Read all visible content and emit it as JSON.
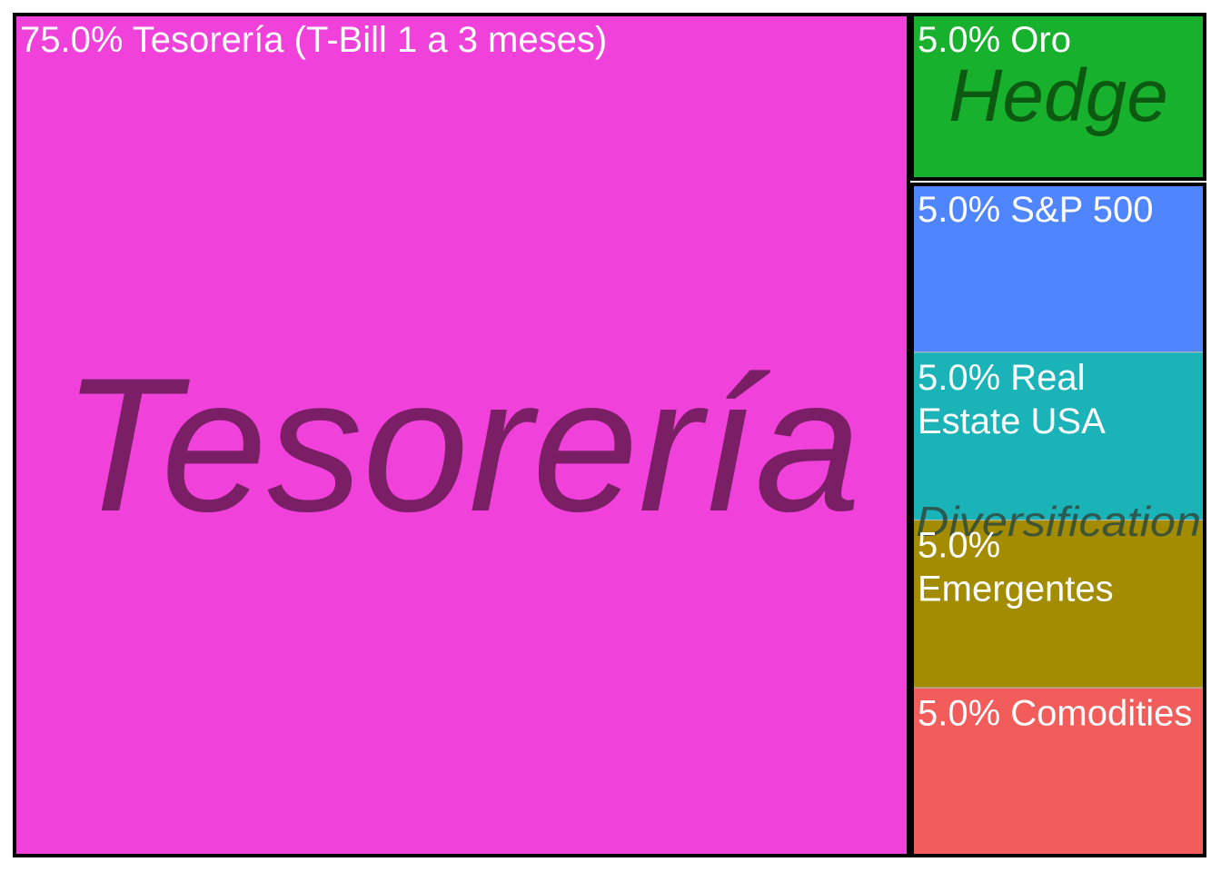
{
  "chart_data": {
    "type": "treemap",
    "unit": "%",
    "groups": [
      {
        "name": "Tesorería",
        "label_color": "#7a1f66",
        "tiles": [
          {
            "id": "tesoreria",
            "percent_label": "75.0%",
            "name": "Tesorería (T-Bill 1 a 3 meses)",
            "value": 75.0,
            "color": "#f041da"
          }
        ]
      },
      {
        "name": "Hedge",
        "label_color": "#0c5a12",
        "tiles": [
          {
            "id": "oro",
            "percent_label": "5.0%",
            "name": "Oro",
            "value": 5.0,
            "color": "#18b12e"
          }
        ]
      },
      {
        "name": "Diversification",
        "label_color": "#2e4a3e",
        "tiles": [
          {
            "id": "sp500",
            "percent_label": "5.0%",
            "name": "S&P 500",
            "value": 5.0,
            "color": "#4f86ff"
          },
          {
            "id": "real-estate",
            "percent_label": "5.0%",
            "name": "Real Estate USA",
            "value": 5.0,
            "color": "#19b3b8"
          },
          {
            "id": "emergentes",
            "percent_label": "5.0%",
            "name": "Emergentes",
            "value": 5.0,
            "color": "#a38c00"
          },
          {
            "id": "comodities",
            "percent_label": "5.0%",
            "name": "Comodities",
            "value": 5.0,
            "color": "#f25c5b"
          }
        ]
      }
    ]
  }
}
